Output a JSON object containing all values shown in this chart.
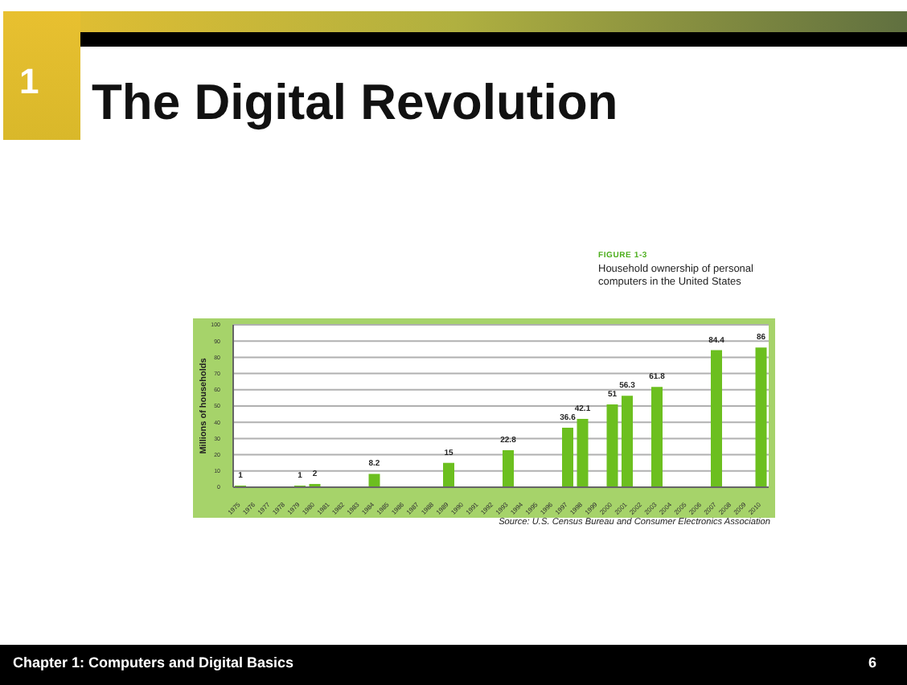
{
  "chart_data": {
    "type": "bar",
    "title": "The Digital Revolution",
    "ylabel": "Millions of households",
    "categories": [
      "1975",
      "1976",
      "1977",
      "1978",
      "1979",
      "1980",
      "1981",
      "1982",
      "1983",
      "1984",
      "1985",
      "1986",
      "1987",
      "1988",
      "1989",
      "1990",
      "1991",
      "1992",
      "1993",
      "1994",
      "1995",
      "1996",
      "1997",
      "1998",
      "1999",
      "2000",
      "2001",
      "2002",
      "2003",
      "2004",
      "2005",
      "2006",
      "2007",
      "2008",
      "2009",
      "2010"
    ],
    "values": [
      1,
      null,
      null,
      null,
      1,
      2,
      null,
      null,
      null,
      8.2,
      null,
      null,
      null,
      null,
      15,
      null,
      null,
      null,
      22.8,
      null,
      null,
      null,
      36.6,
      42.1,
      null,
      51,
      56.3,
      null,
      61.8,
      null,
      null,
      null,
      84.4,
      null,
      null,
      86
    ],
    "color": "#6cbf1f",
    "ylim": [
      0,
      100
    ],
    "yticks": [
      0,
      10,
      20,
      30,
      40,
      50,
      60,
      70,
      80,
      90,
      100
    ],
    "grid": "y",
    "data_labels": true,
    "annotations": [
      "1",
      "FIGURE 1-3",
      "Household ownership of personal computers in the United States",
      "Source: U.S. Census Bureau and Consumer Electronics Association",
      "Chapter 1: Computers and Digital Basics",
      "6"
    ]
  }
}
